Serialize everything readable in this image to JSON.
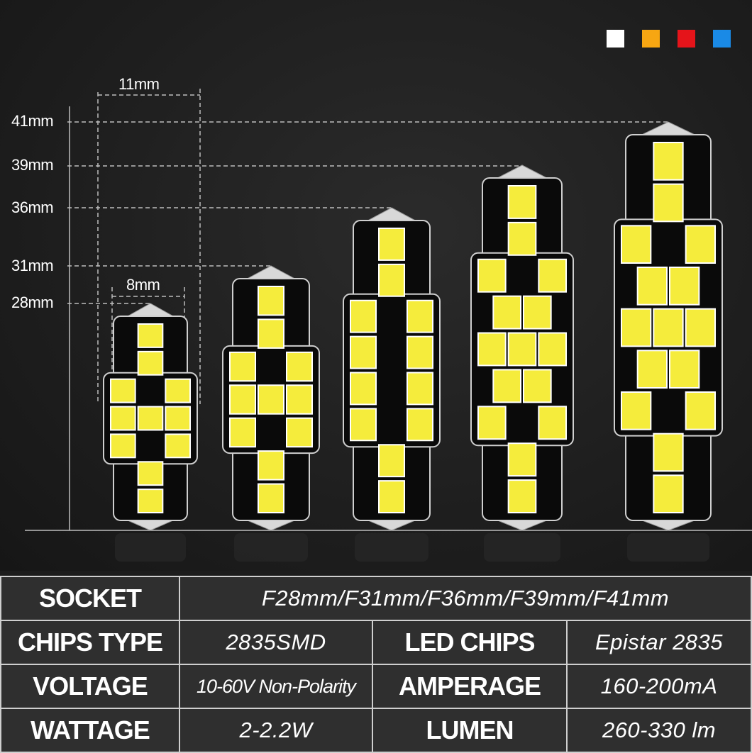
{
  "color_options": [
    {
      "name": "white",
      "hex": "#ffffff"
    },
    {
      "name": "amber",
      "hex": "#f7a612"
    },
    {
      "name": "red",
      "hex": "#e5141a"
    },
    {
      "name": "blue",
      "hex": "#1a8ae6"
    }
  ],
  "dimensions": {
    "width_outer": "11mm",
    "width_inner": "8mm",
    "lengths": [
      "41mm",
      "39mm",
      "36mm",
      "31mm",
      "28mm"
    ]
  },
  "specs": {
    "socket": {
      "label": "SOCKET",
      "value": "F28mm/F31mm/F36mm/F39mm/F41mm"
    },
    "chips_type": {
      "label": "CHIPS TYPE",
      "value": "2835SMD"
    },
    "led_chips": {
      "label": "LED CHIPS",
      "value": "Epistar 2835"
    },
    "voltage": {
      "label": "VOLTAGE",
      "value": "10-60V Non-Polarity"
    },
    "amperage": {
      "label": "AMPERAGE",
      "value": "160-200mA"
    },
    "wattage": {
      "label": "WATTAGE",
      "value": "2-2.2W"
    },
    "lumen": {
      "label": "LUMEN",
      "value": "260-330 lm"
    }
  },
  "colors": {
    "chip": "#f5ec3c",
    "board": "#0a0a0a",
    "cap": "#d8d8d8"
  }
}
